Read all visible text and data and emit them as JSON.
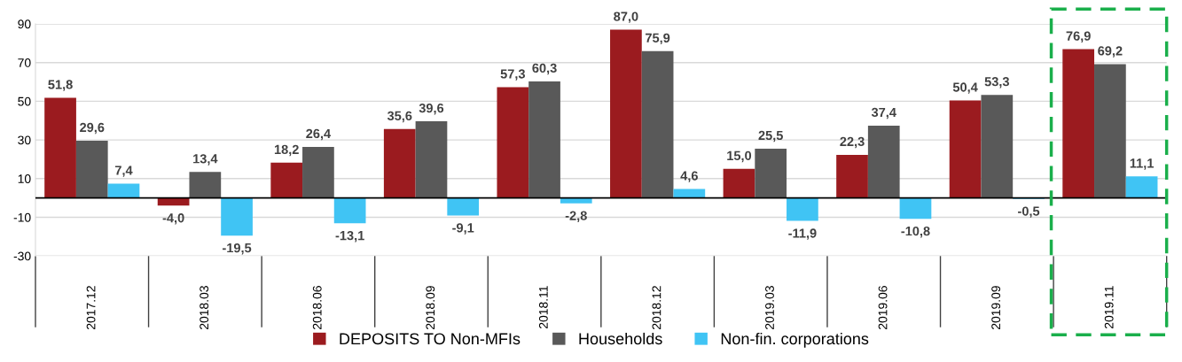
{
  "chart_data": {
    "type": "bar",
    "categories": [
      "2017.12",
      "2018.03",
      "2018.06",
      "2018.09",
      "2018.11",
      "2018.12",
      "2019.03",
      "2019.06",
      "2019.09",
      "2019.11"
    ],
    "series": [
      {
        "name": "DEPOSITS TO Non-MFIs",
        "color": "#9b1b1f",
        "values": [
          51.8,
          -4.0,
          18.2,
          35.6,
          57.3,
          87.0,
          15.0,
          22.3,
          50.4,
          76.9
        ],
        "value_labels": [
          "51,8",
          "-4,0",
          "18,2",
          "35,6",
          "57,3",
          "87,0",
          "15,0",
          "22,3",
          "50,4",
          "76,9"
        ]
      },
      {
        "name": "Households",
        "color": "#595959",
        "values": [
          29.6,
          13.4,
          26.4,
          39.6,
          60.3,
          75.9,
          25.5,
          37.4,
          53.3,
          69.2
        ],
        "value_labels": [
          "29,6",
          "13,4",
          "26,4",
          "39,6",
          "60,3",
          "75,9",
          "25,5",
          "37,4",
          "53,3",
          "69,2"
        ]
      },
      {
        "name": "Non-fin. corporations",
        "color": "#40c4f4",
        "values": [
          7.4,
          -19.5,
          -13.1,
          -9.1,
          -2.8,
          4.6,
          -11.9,
          -10.8,
          -0.5,
          11.1
        ],
        "value_labels": [
          "7,4",
          "-19,5",
          "-13,1",
          "-9,1",
          "-2,8",
          "4,6",
          "-11,9",
          "-10,8",
          "-0,5",
          "11,1"
        ]
      }
    ],
    "ylim": [
      -30,
      90
    ],
    "yticks": [
      -30,
      -10,
      10,
      30,
      50,
      70,
      90
    ],
    "grid": "y",
    "legend": "bottom"
  }
}
